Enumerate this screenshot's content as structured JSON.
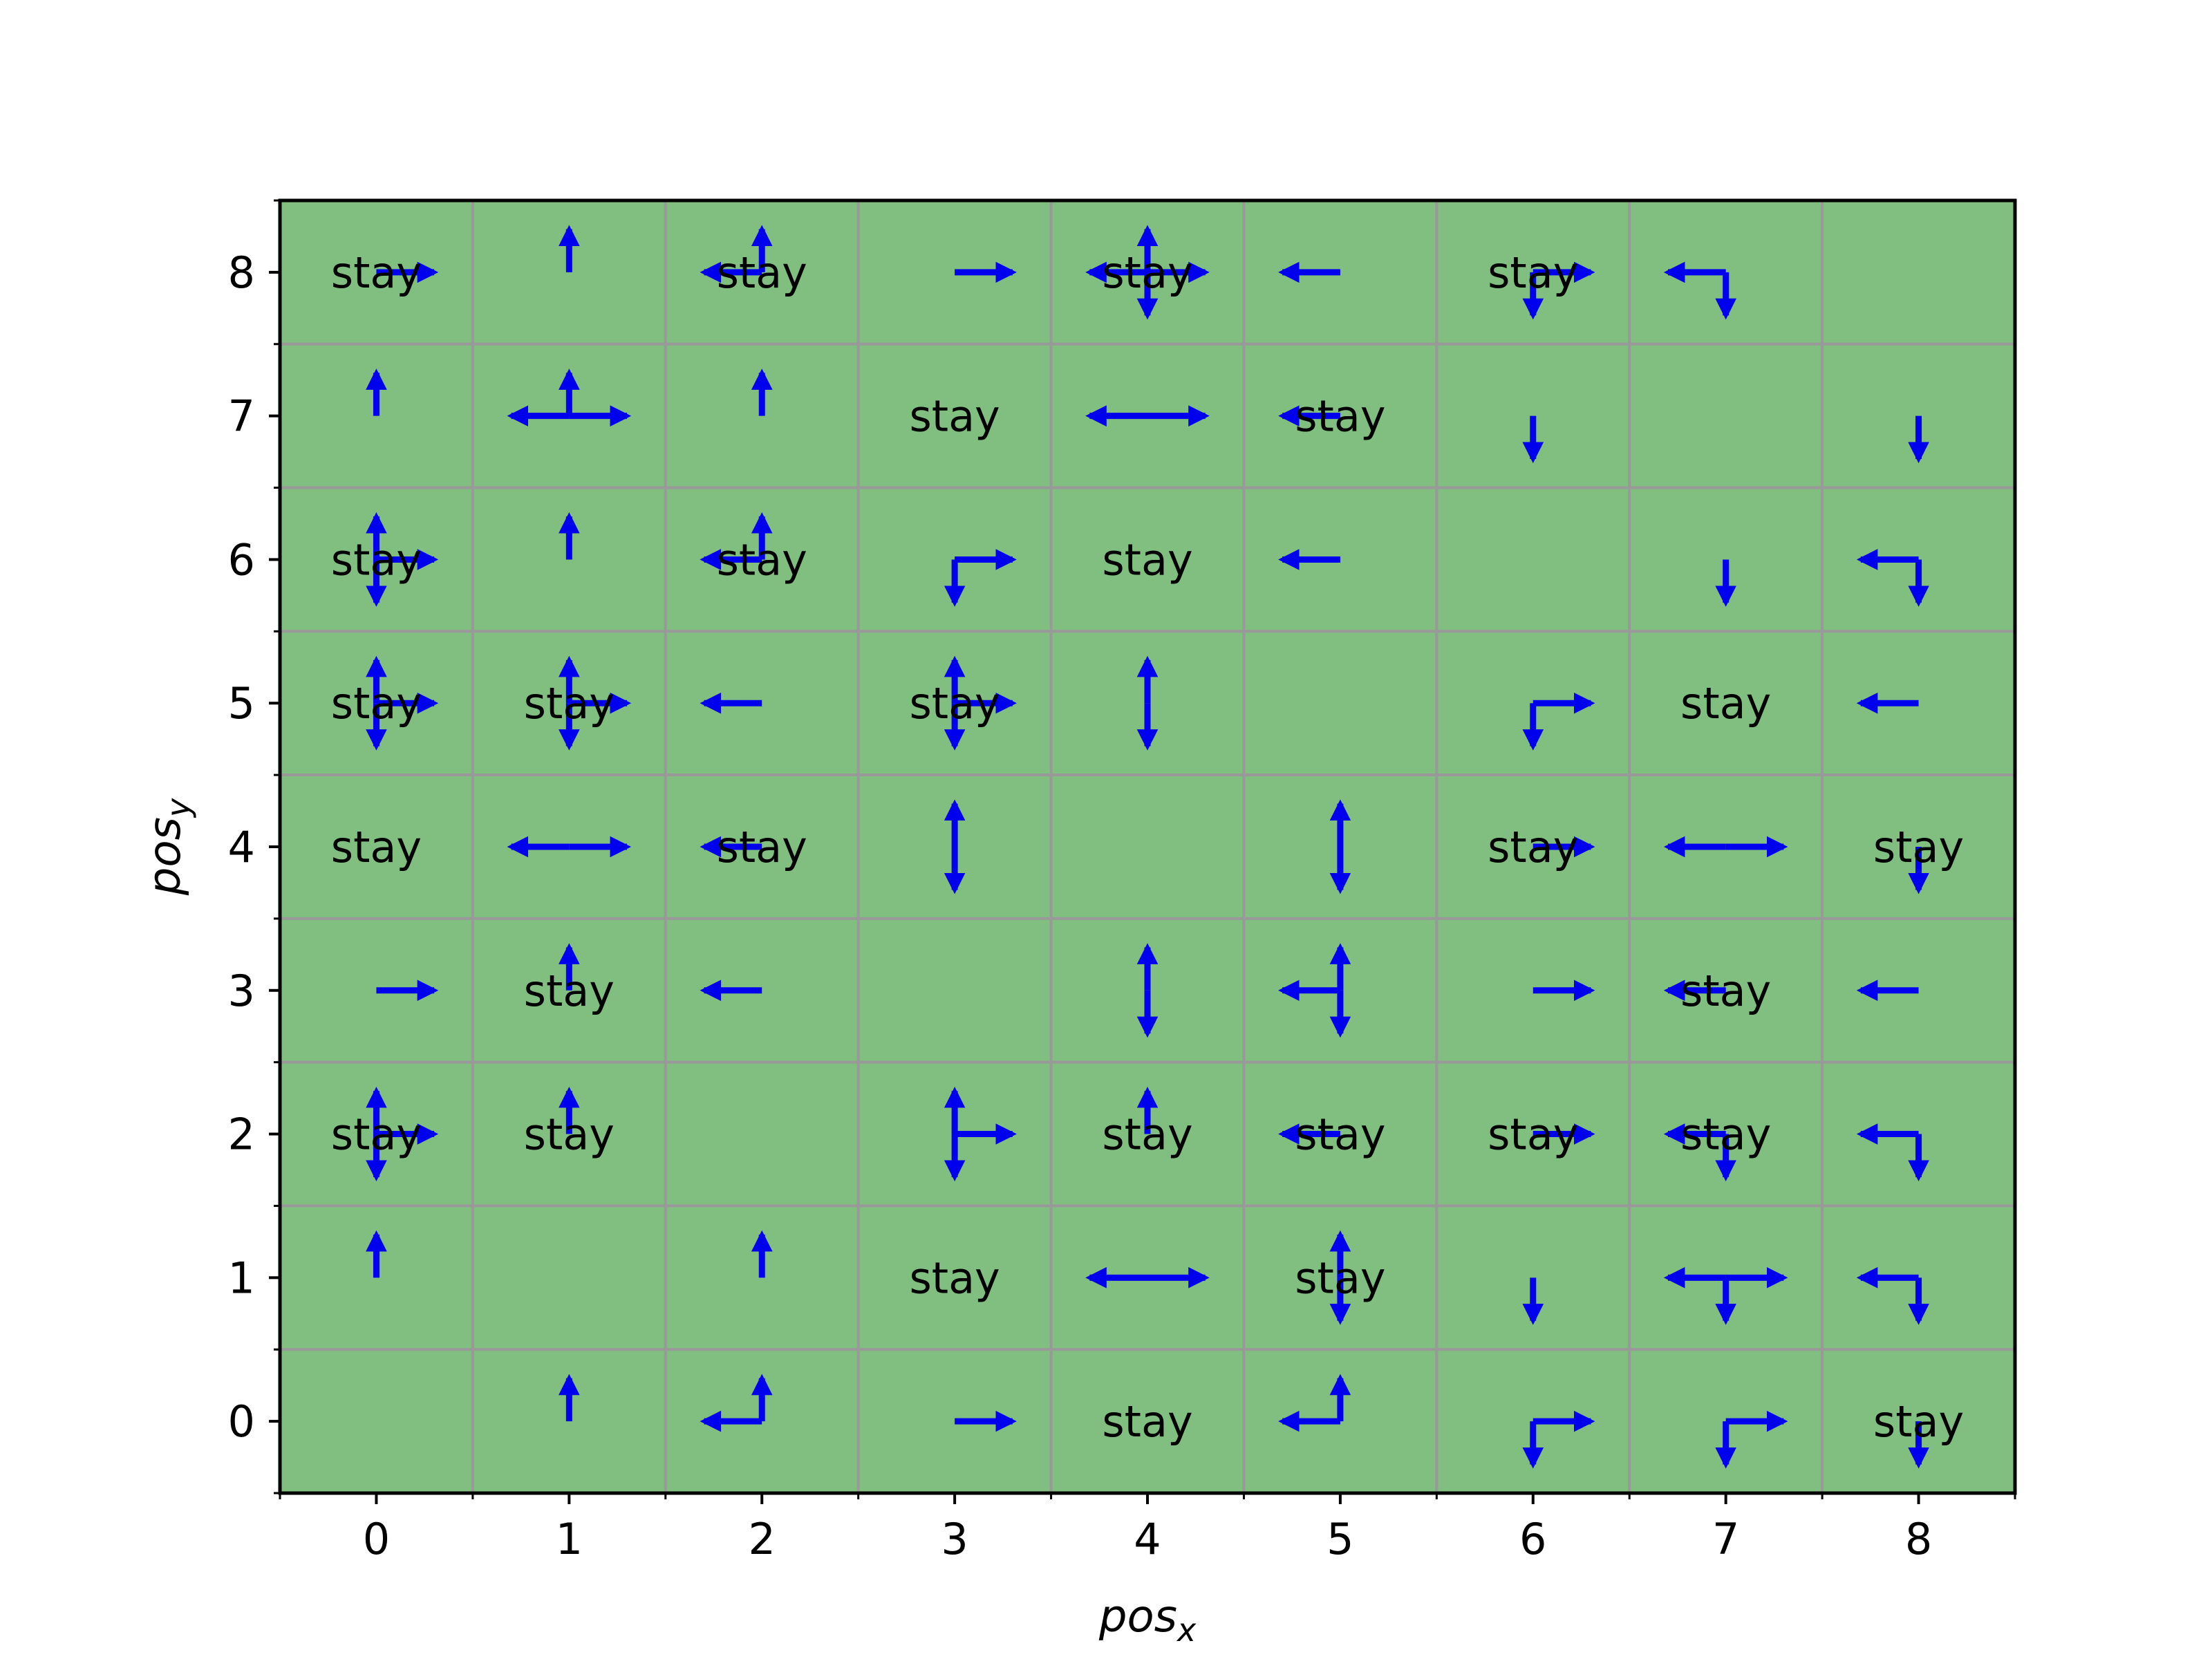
{
  "colors": {
    "cell_fill": "#80bf80",
    "grid_line": "#999999",
    "arrow": "#0000ee",
    "frame": "#000000"
  },
  "chart_data": {
    "type": "heatmap",
    "xlabel": {
      "base": "pos",
      "sub": "x"
    },
    "ylabel": {
      "base": "pos",
      "sub": "y"
    },
    "x_ticks": [
      "0",
      "1",
      "2",
      "3",
      "4",
      "5",
      "6",
      "7",
      "8"
    ],
    "y_ticks": [
      "0",
      "1",
      "2",
      "3",
      "4",
      "5",
      "6",
      "7",
      "8"
    ],
    "xlim": [
      -0.5,
      8.5
    ],
    "ylim": [
      -0.5,
      8.5
    ],
    "grid": true,
    "stay_text": "stay",
    "cells": [
      {
        "x": 0,
        "y": 8,
        "stay": true,
        "actions": [
          "right"
        ]
      },
      {
        "x": 1,
        "y": 8,
        "stay": false,
        "actions": [
          "up"
        ]
      },
      {
        "x": 2,
        "y": 8,
        "stay": true,
        "actions": [
          "up",
          "left"
        ]
      },
      {
        "x": 3,
        "y": 8,
        "stay": false,
        "actions": [
          "right"
        ]
      },
      {
        "x": 4,
        "y": 8,
        "stay": true,
        "actions": [
          "up",
          "down",
          "left",
          "right"
        ]
      },
      {
        "x": 5,
        "y": 8,
        "stay": false,
        "actions": [
          "left"
        ]
      },
      {
        "x": 6,
        "y": 8,
        "stay": true,
        "actions": [
          "down",
          "right"
        ]
      },
      {
        "x": 7,
        "y": 8,
        "stay": false,
        "actions": [
          "left",
          "down"
        ]
      },
      {
        "x": 8,
        "y": 8,
        "stay": false,
        "actions": []
      },
      {
        "x": 0,
        "y": 7,
        "stay": false,
        "actions": [
          "up"
        ]
      },
      {
        "x": 1,
        "y": 7,
        "stay": false,
        "actions": [
          "up",
          "left",
          "right"
        ]
      },
      {
        "x": 2,
        "y": 7,
        "stay": false,
        "actions": [
          "up"
        ]
      },
      {
        "x": 3,
        "y": 7,
        "stay": true,
        "actions": []
      },
      {
        "x": 4,
        "y": 7,
        "stay": false,
        "actions": [
          "left",
          "right"
        ]
      },
      {
        "x": 5,
        "y": 7,
        "stay": true,
        "actions": [
          "left"
        ]
      },
      {
        "x": 6,
        "y": 7,
        "stay": false,
        "actions": [
          "down"
        ]
      },
      {
        "x": 7,
        "y": 7,
        "stay": false,
        "actions": []
      },
      {
        "x": 8,
        "y": 7,
        "stay": false,
        "actions": [
          "down"
        ]
      },
      {
        "x": 0,
        "y": 6,
        "stay": true,
        "actions": [
          "up",
          "down",
          "right"
        ]
      },
      {
        "x": 1,
        "y": 6,
        "stay": false,
        "actions": [
          "up"
        ]
      },
      {
        "x": 2,
        "y": 6,
        "stay": true,
        "actions": [
          "up",
          "left"
        ]
      },
      {
        "x": 3,
        "y": 6,
        "stay": false,
        "actions": [
          "down",
          "right"
        ]
      },
      {
        "x": 4,
        "y": 6,
        "stay": true,
        "actions": []
      },
      {
        "x": 5,
        "y": 6,
        "stay": false,
        "actions": [
          "left"
        ]
      },
      {
        "x": 6,
        "y": 6,
        "stay": false,
        "actions": []
      },
      {
        "x": 7,
        "y": 6,
        "stay": false,
        "actions": [
          "down"
        ]
      },
      {
        "x": 8,
        "y": 6,
        "stay": false,
        "actions": [
          "left",
          "down"
        ]
      },
      {
        "x": 0,
        "y": 5,
        "stay": true,
        "actions": [
          "up",
          "down",
          "right"
        ]
      },
      {
        "x": 1,
        "y": 5,
        "stay": true,
        "actions": [
          "up",
          "down",
          "right"
        ]
      },
      {
        "x": 2,
        "y": 5,
        "stay": false,
        "actions": [
          "left"
        ]
      },
      {
        "x": 3,
        "y": 5,
        "stay": true,
        "actions": [
          "up",
          "down",
          "right"
        ]
      },
      {
        "x": 4,
        "y": 5,
        "stay": false,
        "actions": [
          "up",
          "down"
        ]
      },
      {
        "x": 5,
        "y": 5,
        "stay": false,
        "actions": []
      },
      {
        "x": 6,
        "y": 5,
        "stay": false,
        "actions": [
          "down",
          "right"
        ]
      },
      {
        "x": 7,
        "y": 5,
        "stay": true,
        "actions": []
      },
      {
        "x": 8,
        "y": 5,
        "stay": false,
        "actions": [
          "left"
        ]
      },
      {
        "x": 0,
        "y": 4,
        "stay": true,
        "actions": []
      },
      {
        "x": 1,
        "y": 4,
        "stay": false,
        "actions": [
          "left",
          "right"
        ]
      },
      {
        "x": 2,
        "y": 4,
        "stay": true,
        "actions": [
          "left"
        ]
      },
      {
        "x": 3,
        "y": 4,
        "stay": false,
        "actions": [
          "up",
          "down"
        ]
      },
      {
        "x": 4,
        "y": 4,
        "stay": false,
        "actions": []
      },
      {
        "x": 5,
        "y": 4,
        "stay": false,
        "actions": [
          "up",
          "down"
        ]
      },
      {
        "x": 6,
        "y": 4,
        "stay": true,
        "actions": [
          "right"
        ]
      },
      {
        "x": 7,
        "y": 4,
        "stay": false,
        "actions": [
          "left",
          "right"
        ]
      },
      {
        "x": 8,
        "y": 4,
        "stay": true,
        "actions": [
          "down"
        ]
      },
      {
        "x": 0,
        "y": 3,
        "stay": false,
        "actions": [
          "right"
        ]
      },
      {
        "x": 1,
        "y": 3,
        "stay": true,
        "actions": [
          "up"
        ]
      },
      {
        "x": 2,
        "y": 3,
        "stay": false,
        "actions": [
          "left"
        ]
      },
      {
        "x": 3,
        "y": 3,
        "stay": false,
        "actions": []
      },
      {
        "x": 4,
        "y": 3,
        "stay": false,
        "actions": [
          "up",
          "down"
        ]
      },
      {
        "x": 5,
        "y": 3,
        "stay": false,
        "actions": [
          "up",
          "down",
          "left"
        ]
      },
      {
        "x": 6,
        "y": 3,
        "stay": false,
        "actions": [
          "right"
        ]
      },
      {
        "x": 7,
        "y": 3,
        "stay": true,
        "actions": [
          "left"
        ]
      },
      {
        "x": 8,
        "y": 3,
        "stay": false,
        "actions": [
          "left"
        ]
      },
      {
        "x": 0,
        "y": 2,
        "stay": true,
        "actions": [
          "up",
          "down",
          "right"
        ]
      },
      {
        "x": 1,
        "y": 2,
        "stay": true,
        "actions": [
          "up"
        ]
      },
      {
        "x": 2,
        "y": 2,
        "stay": false,
        "actions": []
      },
      {
        "x": 3,
        "y": 2,
        "stay": false,
        "actions": [
          "up",
          "down",
          "right"
        ]
      },
      {
        "x": 4,
        "y": 2,
        "stay": true,
        "actions": [
          "up"
        ]
      },
      {
        "x": 5,
        "y": 2,
        "stay": true,
        "actions": [
          "left"
        ]
      },
      {
        "x": 6,
        "y": 2,
        "stay": true,
        "actions": [
          "right"
        ]
      },
      {
        "x": 7,
        "y": 2,
        "stay": true,
        "actions": [
          "left",
          "down"
        ]
      },
      {
        "x": 8,
        "y": 2,
        "stay": false,
        "actions": [
          "left",
          "down"
        ]
      },
      {
        "x": 0,
        "y": 1,
        "stay": false,
        "actions": [
          "up"
        ]
      },
      {
        "x": 1,
        "y": 1,
        "stay": false,
        "actions": []
      },
      {
        "x": 2,
        "y": 1,
        "stay": false,
        "actions": [
          "up"
        ]
      },
      {
        "x": 3,
        "y": 1,
        "stay": true,
        "actions": []
      },
      {
        "x": 4,
        "y": 1,
        "stay": false,
        "actions": [
          "left",
          "right"
        ]
      },
      {
        "x": 5,
        "y": 1,
        "stay": true,
        "actions": [
          "up",
          "down"
        ]
      },
      {
        "x": 6,
        "y": 1,
        "stay": false,
        "actions": [
          "down"
        ]
      },
      {
        "x": 7,
        "y": 1,
        "stay": false,
        "actions": [
          "down",
          "left",
          "right"
        ]
      },
      {
        "x": 8,
        "y": 1,
        "stay": false,
        "actions": [
          "left",
          "down"
        ]
      },
      {
        "x": 0,
        "y": 0,
        "stay": false,
        "actions": []
      },
      {
        "x": 1,
        "y": 0,
        "stay": false,
        "actions": [
          "up"
        ]
      },
      {
        "x": 2,
        "y": 0,
        "stay": false,
        "actions": [
          "up",
          "left"
        ]
      },
      {
        "x": 3,
        "y": 0,
        "stay": false,
        "actions": [
          "right"
        ]
      },
      {
        "x": 4,
        "y": 0,
        "stay": true,
        "actions": []
      },
      {
        "x": 5,
        "y": 0,
        "stay": false,
        "actions": [
          "up",
          "left"
        ]
      },
      {
        "x": 6,
        "y": 0,
        "stay": false,
        "actions": [
          "down",
          "right"
        ]
      },
      {
        "x": 7,
        "y": 0,
        "stay": false,
        "actions": [
          "down",
          "right"
        ]
      },
      {
        "x": 8,
        "y": 0,
        "stay": true,
        "actions": [
          "down"
        ]
      }
    ]
  }
}
